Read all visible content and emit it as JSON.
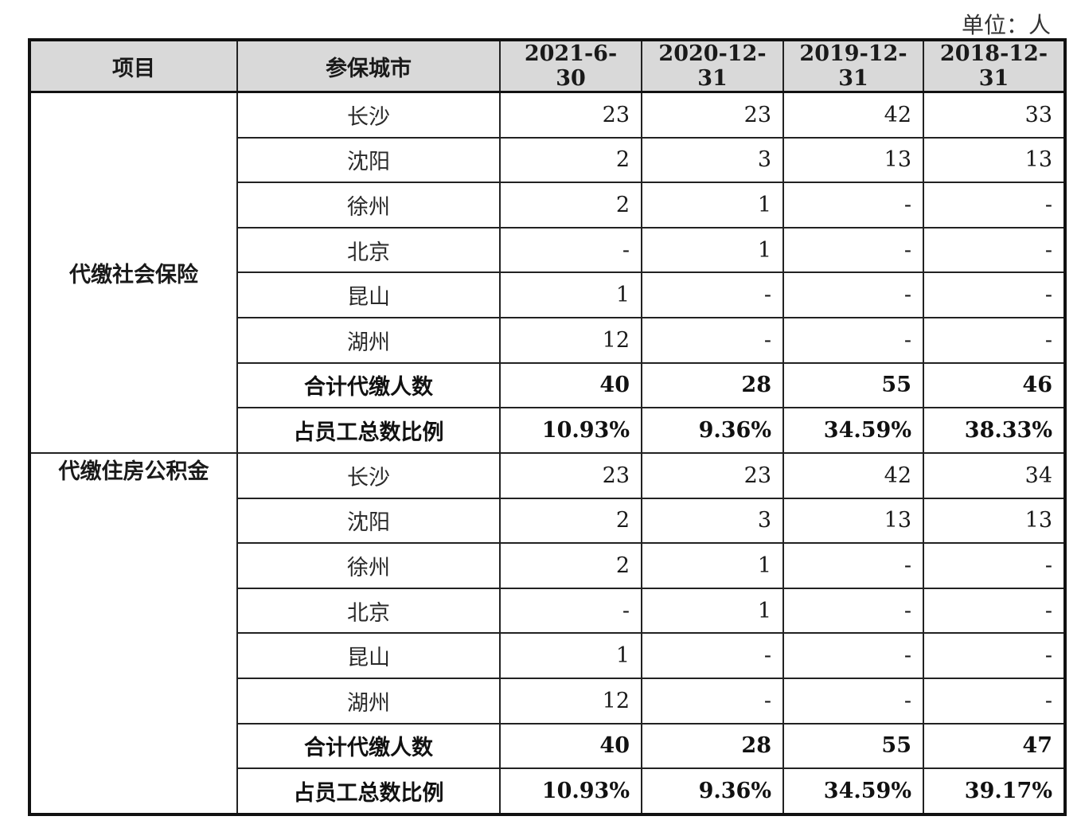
{
  "unit_label": "单位：人",
  "headers": [
    "项目",
    "参保城市",
    "2021-6-30",
    "2020-12-31",
    "2019-12-31",
    "2018-12-31"
  ],
  "sections": [
    {
      "category": "代缴社会保险",
      "rows": [
        {
          "city": "长沙",
          "values": [
            "23",
            "23",
            "42",
            "33"
          ]
        },
        {
          "city": "沈阳",
          "values": [
            "2",
            "3",
            "13",
            "13"
          ]
        },
        {
          "city": "徐州",
          "values": [
            "2",
            "1",
            "-",
            "-"
          ]
        },
        {
          "city": "北京",
          "values": [
            "-",
            "1",
            "-",
            "-"
          ]
        },
        {
          "city": "昆山",
          "values": [
            "1",
            "-",
            "-",
            "-"
          ]
        },
        {
          "city": "湖州",
          "values": [
            "12",
            "-",
            "-",
            "-"
          ]
        },
        {
          "city": "合计代缴人数",
          "values": [
            "40",
            "28",
            "55",
            "46"
          ],
          "bold": true
        },
        {
          "city": "占员工总数比例",
          "values": [
            "10.93%",
            "9.36%",
            "34.59%",
            "38.33%"
          ],
          "bold": true
        }
      ]
    },
    {
      "category": "代缴住房公积金",
      "rows": [
        {
          "city": "长沙",
          "values": [
            "23",
            "23",
            "42",
            "34"
          ]
        },
        {
          "city": "沈阳",
          "values": [
            "2",
            "3",
            "13",
            "13"
          ]
        },
        {
          "city": "徐州",
          "values": [
            "2",
            "1",
            "-",
            "-"
          ]
        },
        {
          "city": "北京",
          "values": [
            "-",
            "1",
            "-",
            "-"
          ]
        },
        {
          "city": "昆山",
          "values": [
            "1",
            "-",
            "-",
            "-"
          ]
        },
        {
          "city": "湖州",
          "values": [
            "12",
            "-",
            "-",
            "-"
          ]
        },
        {
          "city": "合计代缴人数",
          "values": [
            "40",
            "28",
            "55",
            "47"
          ],
          "bold": true
        },
        {
          "city": "占员工总数比例",
          "values": [
            "10.93%",
            "9.36%",
            "34.59%",
            "39.17%"
          ],
          "bold": true
        }
      ]
    }
  ]
}
